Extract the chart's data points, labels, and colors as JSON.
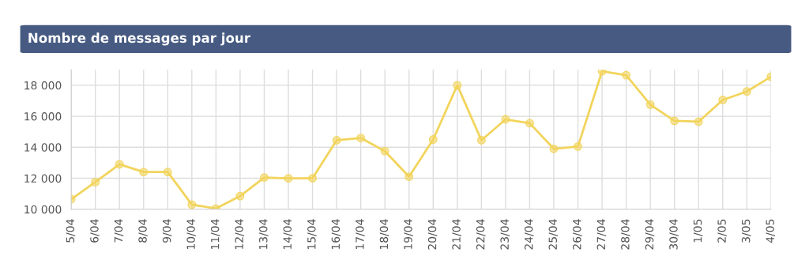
{
  "chart_data": {
    "type": "line",
    "title": "Nombre de messages par jour",
    "categories": [
      "5/04",
      "6/04",
      "7/04",
      "8/04",
      "9/04",
      "10/04",
      "11/04",
      "12/04",
      "13/04",
      "14/04",
      "15/04",
      "16/04",
      "17/04",
      "18/04",
      "19/04",
      "20/04",
      "21/04",
      "22/04",
      "23/04",
      "24/04",
      "25/04",
      "26/04",
      "27/04",
      "28/04",
      "29/04",
      "30/04",
      "1/05",
      "2/05",
      "3/05",
      "4/05"
    ],
    "series": [
      {
        "color": "#f2d45c",
        "values": [
          10650,
          11750,
          12900,
          12400,
          12400,
          10300,
          10050,
          10850,
          12050,
          12000,
          12000,
          14450,
          14600,
          13750,
          12100,
          14500,
          18000,
          14450,
          15800,
          15550,
          13900,
          14050,
          18900,
          18650,
          16750,
          15700,
          15650,
          17050,
          17600,
          18550
        ]
      }
    ],
    "ylim": [
      10000,
      19000
    ],
    "yticks": [
      {
        "value": 10000,
        "label": "10 000"
      },
      {
        "value": 12000,
        "label": "12 000"
      },
      {
        "value": 14000,
        "label": "14 000"
      },
      {
        "value": 16000,
        "label": "16 000"
      },
      {
        "value": 18000,
        "label": "18 000"
      }
    ],
    "grid": true,
    "marker": "circle",
    "line_style": "solid"
  }
}
